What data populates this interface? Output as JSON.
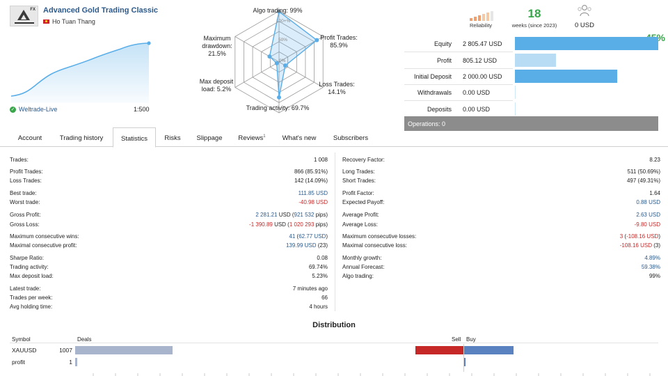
{
  "header": {
    "signal_title": "Advanced Gold Trading Classic",
    "author": "Ho Tuan Thang",
    "logo_text": "FX",
    "growth": "45%",
    "broker": "Weltrade-Live",
    "leverage": "1:500"
  },
  "radar": {
    "center_label": "0%",
    "mid_label": "50%",
    "outer_label": "100+%",
    "algo": "Algo trading: 99%",
    "profit_trades_label": "Profit Trades:",
    "profit_trades_value": "85.9%",
    "loss_trades_label": "Loss Trades:",
    "loss_trades_value": "14.1%",
    "trading_activity": "Trading activity: 69.7%",
    "max_deposit_label": "Max deposit",
    "max_deposit_value": "load: 5.2%",
    "max_drawdown_l1": "Maximum",
    "max_drawdown_l2": "drawdown:",
    "max_drawdown_value": "21.5%",
    "values": [
      99,
      85.9,
      14.1,
      69.7,
      5.2,
      21.5
    ]
  },
  "summary": {
    "reliability_label": "Reliability",
    "weeks_value": "18",
    "weeks_label": "weeks (since 2023)",
    "subscribers_value": "0 USD"
  },
  "balance": {
    "rows": [
      {
        "label": "Equity",
        "value": "2 805.47 USD",
        "fraction": 1.0,
        "color": "#5aaee8"
      },
      {
        "label": "Profit",
        "value": "805.12 USD",
        "fraction": 0.287,
        "color": "#b7dcf4"
      },
      {
        "label": "Initial Deposit",
        "value": "2 000.00 USD",
        "fraction": 0.713,
        "color": "#5aaee8"
      },
      {
        "label": "Withdrawals",
        "value": "0.00 USD",
        "fraction": 0,
        "color": "#5aaee8"
      },
      {
        "label": "Deposits",
        "value": "0.00 USD",
        "fraction": 0,
        "color": "#5aaee8"
      }
    ],
    "operations": "Operations: 0"
  },
  "tabs": [
    {
      "label": "Account"
    },
    {
      "label": "Trading history"
    },
    {
      "label": "Statistics"
    },
    {
      "label": "Risks"
    },
    {
      "label": "Slippage"
    },
    {
      "label": "Reviews",
      "badge": "1"
    },
    {
      "label": "What's new"
    },
    {
      "label": "Subscribers"
    }
  ],
  "stats_left": [
    {
      "k": "Trades:",
      "v": "1 008"
    },
    {
      "k": "Profit Trades:",
      "v": "866 (85.91%)"
    },
    {
      "k": "Loss Trades:",
      "v": "142 (14.09%)"
    },
    {
      "k": "Best trade:",
      "v": "111.85 USD",
      "c": "blue"
    },
    {
      "k": "Worst trade:",
      "v": "-40.98 USD",
      "c": "red"
    },
    {
      "k": "Gross Profit:",
      "v1": "2 281.21",
      "v2": " USD (",
      "v3": "921 532",
      "v4": " pips)",
      "c": "blue"
    },
    {
      "k": "Gross Loss:",
      "v1": "-1 390.89",
      "v2": " USD (",
      "v3": "1 020 293",
      "v4": " pips)",
      "c": "red"
    },
    {
      "k": "Maximum consecutive wins:",
      "v1": "41",
      "v2": " (",
      "v3": "62.77 USD",
      "v4": ")",
      "c": "blue"
    },
    {
      "k": "Maximal consecutive profit:",
      "v1": "139.99 USD",
      "v2": " (23)",
      "c": "blue"
    },
    {
      "k": "Sharpe Ratio:",
      "v": "0.08"
    },
    {
      "k": "Trading activity:",
      "v": "69.74%"
    },
    {
      "k": "Max deposit load:",
      "v": "5.23%"
    },
    {
      "k": "Latest trade:",
      "v": "7 minutes ago"
    },
    {
      "k": "Trades per week:",
      "v": "66"
    },
    {
      "k": "Avg holding time:",
      "v": "4 hours"
    }
  ],
  "stats_right": [
    {
      "k": "Recovery Factor:",
      "v": "8.23"
    },
    {
      "k": "Long Trades:",
      "v": "511 (50.69%)"
    },
    {
      "k": "Short Trades:",
      "v": "497 (49.31%)"
    },
    {
      "k": "Profit Factor:",
      "v": "1.64"
    },
    {
      "k": "Expected Payoff:",
      "v": "0.88 USD",
      "c": "blue"
    },
    {
      "k": "Average Profit:",
      "v": "2.63 USD",
      "c": "blue"
    },
    {
      "k": "Average Loss:",
      "v": "-9.80 USD",
      "c": "red"
    },
    {
      "k": "Maximum consecutive losses:",
      "v1": "3",
      "v2": " (",
      "v3": "-108.16 USD",
      "v4": ")",
      "c": "red"
    },
    {
      "k": "Maximal consecutive loss:",
      "v1": "-108.16 USD",
      "v2": " (3)",
      "c": "red"
    },
    {
      "k": "Monthly growth:",
      "v": "4.89%",
      "c": "blue"
    },
    {
      "k": "Annual Forecast:",
      "v": "59.38%",
      "c": "blue"
    },
    {
      "k": "Algo trading:",
      "v": "99%"
    }
  ],
  "distribution": {
    "title": "Distribution",
    "col_symbol": "Symbol",
    "col_deals": "Deals",
    "col_sell": "Sell",
    "col_buy": "Buy",
    "rows": [
      {
        "symbol": "XAUUSD",
        "deals": "1007",
        "deals_fraction": 1.0,
        "sell_fraction": 1.0,
        "buy_fraction": 1.0
      },
      {
        "symbol": "profit",
        "deals": "1",
        "deals_fraction": 0.02,
        "sell_fraction": 0,
        "buy_fraction": 0.03
      }
    ]
  },
  "colors": {
    "accent": "#2c5a8c",
    "green": "#3aa64c",
    "red": "#c62828",
    "bar_blue": "#5aaee8",
    "deals_bar": "#a8b4cc",
    "sell_bar": "#c62828",
    "buy_bar": "#5a82c0"
  }
}
